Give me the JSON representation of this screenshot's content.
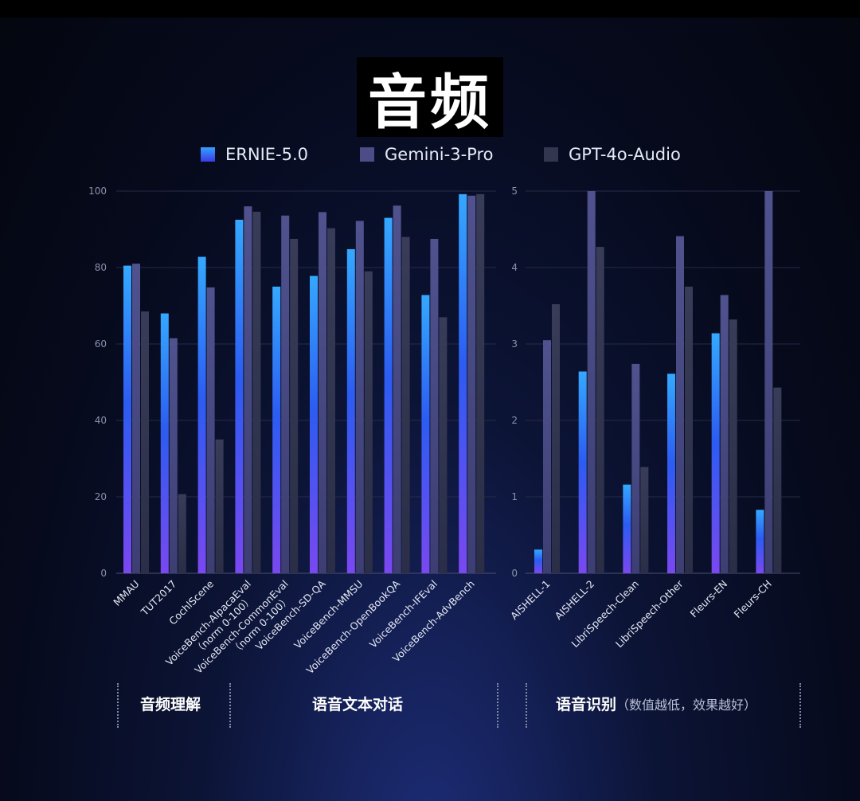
{
  "title": "音频",
  "legend": [
    {
      "name": "ERNIE-5.0",
      "color": "#2b7cf0"
    },
    {
      "name": "Gemini-3-Pro",
      "color": "#4c4d86"
    },
    {
      "name": "GPT-4o-Audio",
      "color": "#33364f"
    }
  ],
  "groups": {
    "audio_understanding": "音频理解",
    "speech_text_dialogue": "语音文本对话",
    "speech_recognition": "语音识别",
    "speech_recognition_note": "（数值越低，效果越好）"
  },
  "chart_data": [
    {
      "type": "bar",
      "ylim": [
        0,
        100
      ],
      "yticks": [
        "0",
        "20",
        "40",
        "60",
        "80",
        "100"
      ],
      "grid": true,
      "categories": [
        "MMAU",
        "TUT2017",
        "CochlScene",
        "VoiceBench-AlpacaEval\n（norm 0-100）",
        "VoiceBench-CommonEval\n（norm 0-100）",
        "VoiceBench-SD-QA",
        "VoiceBench-MMSU",
        "VoiceBench-OpenBookQA",
        "VoiceBench-IFEval",
        "VoiceBench-AdvBench"
      ],
      "series": [
        {
          "name": "ERNIE-5.0",
          "values": [
            80.5,
            68,
            82.8,
            92.5,
            75,
            77.8,
            84.8,
            93,
            72.8,
            99.2
          ]
        },
        {
          "name": "Gemini-3-Pro",
          "values": [
            81,
            61.5,
            74.8,
            96,
            93.6,
            94.5,
            92.2,
            96.2,
            87.5,
            98.8
          ]
        },
        {
          "name": "GPT-4o-Audio",
          "values": [
            68.5,
            20.7,
            35,
            94.6,
            87.5,
            90.3,
            79,
            88,
            67,
            99.2
          ]
        }
      ]
    },
    {
      "type": "bar",
      "ylim": [
        0,
        5
      ],
      "yticks": [
        "0",
        "1",
        "2",
        "3",
        "4",
        "5"
      ],
      "grid": true,
      "categories": [
        "AISHELL-1",
        "AISHELL-2",
        "LibriSpeech-Clean",
        "LibriSpeech-Other",
        "Fleurs-EN",
        "Fleurs-CH"
      ],
      "series": [
        {
          "name": "ERNIE-5.0",
          "values": [
            0.31,
            2.64,
            1.16,
            2.61,
            3.14,
            0.83
          ]
        },
        {
          "name": "Gemini-3-Pro",
          "values": [
            3.05,
            5.0,
            2.74,
            4.41,
            3.64,
            5.0
          ]
        },
        {
          "name": "GPT-4o-Audio",
          "values": [
            3.52,
            4.27,
            1.39,
            3.75,
            3.32,
            2.43
          ]
        }
      ]
    }
  ]
}
